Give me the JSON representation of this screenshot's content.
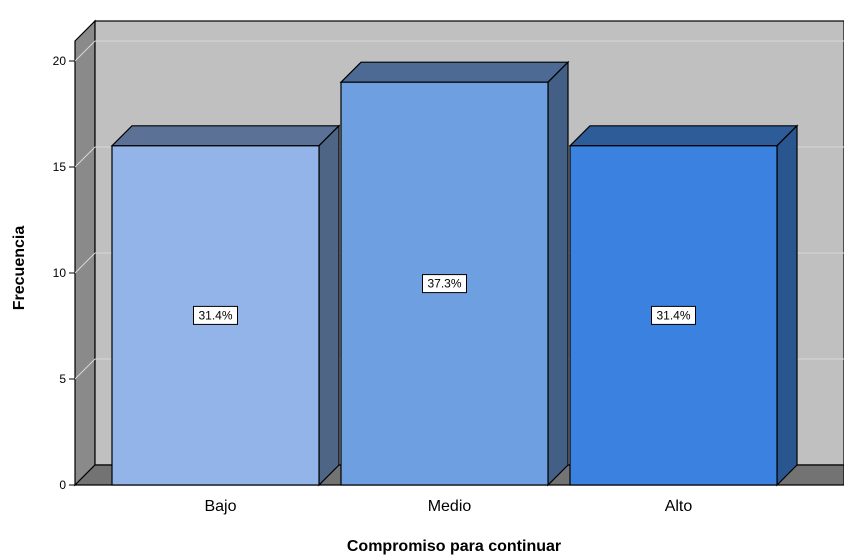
{
  "chart_data": {
    "type": "bar",
    "categories": [
      "Bajo",
      "Medio",
      "Alto"
    ],
    "values": [
      16,
      19,
      16
    ],
    "data_labels": [
      "31.4%",
      "37.3%",
      "31.4%"
    ],
    "xlabel": "Compromiso para continuar",
    "ylabel": "Frecuencia",
    "ylim": [
      0,
      20
    ],
    "yticks": [
      0,
      5,
      10,
      15,
      20
    ],
    "ytick_labels": [
      "0",
      "5",
      "10",
      "15",
      "20"
    ],
    "grid": true,
    "style": "3d",
    "colors": {
      "bars": [
        "#92b4e8",
        "#6e9fe0",
        "#3b82e0"
      ],
      "bar_sides": [
        "#4e6585",
        "#435f86",
        "#2a5690"
      ],
      "bar_tops": [
        "#5b7296",
        "#4c6a94",
        "#2e5c98"
      ],
      "back_wall": "#c0c0c0",
      "left_wall": "#8a8a8a",
      "floor": "#737373",
      "gridline": "#d8d8d8"
    }
  }
}
